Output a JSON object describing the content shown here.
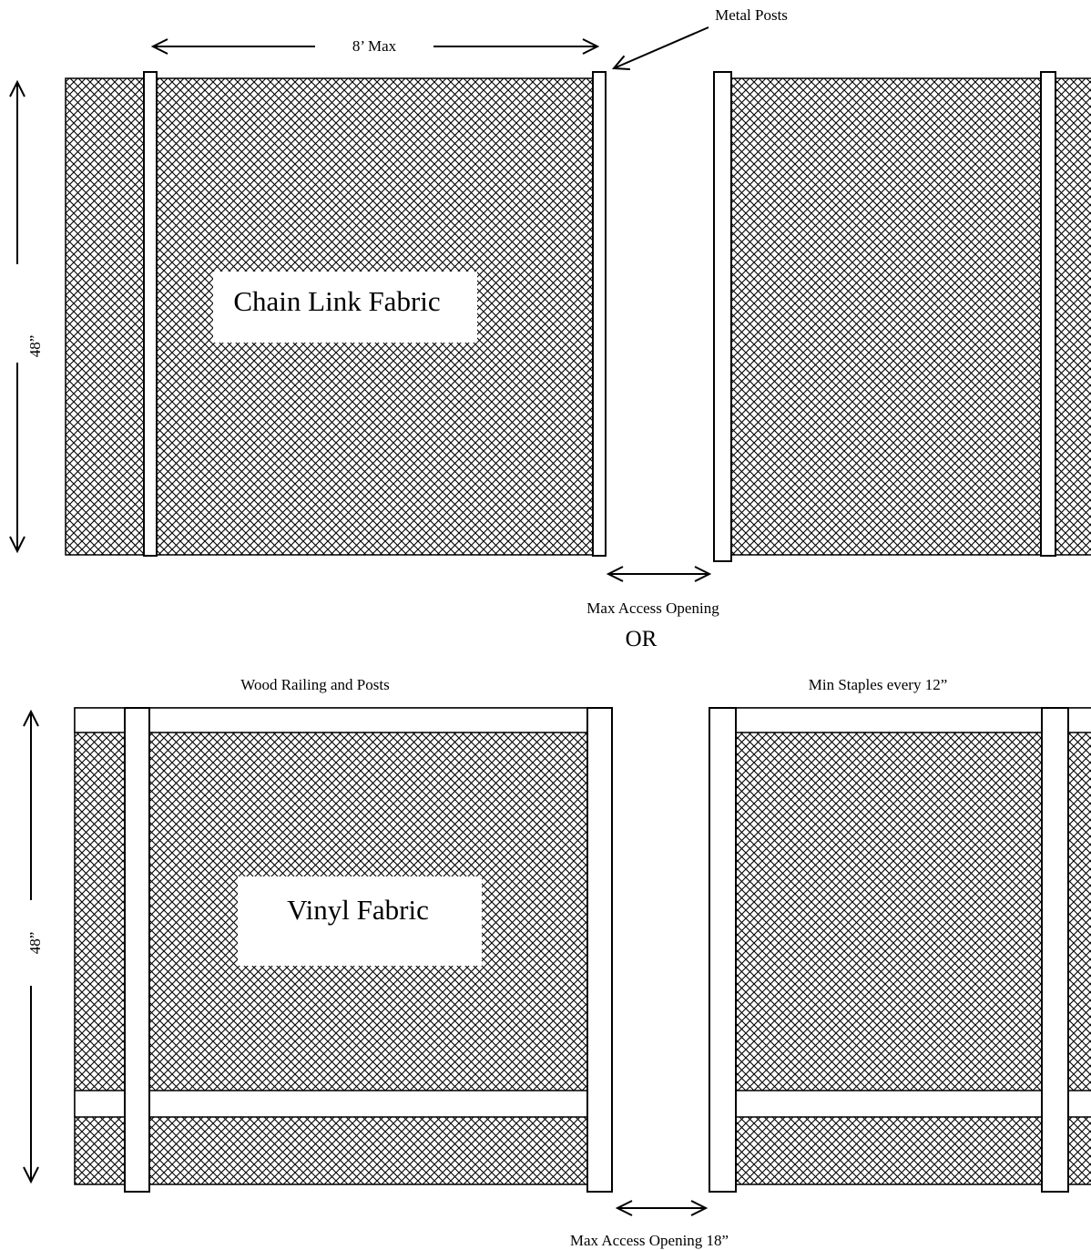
{
  "top_section": {
    "width_label": "8’ Max",
    "metal_posts_label": "Metal Posts",
    "height_label": "48”",
    "fabric_label": "Chain Link Fabric",
    "opening_label": "Max Access Opening"
  },
  "separator": "OR",
  "bottom_section": {
    "wood_label": "Wood Railing and Posts",
    "staples_label": "Min Staples every 12”",
    "height_label": "48”",
    "fabric_label": "Vinyl Fabric",
    "opening_label": "Max Access Opening 18”"
  },
  "colors": {
    "line": "#000000",
    "background": "#ffffff"
  }
}
